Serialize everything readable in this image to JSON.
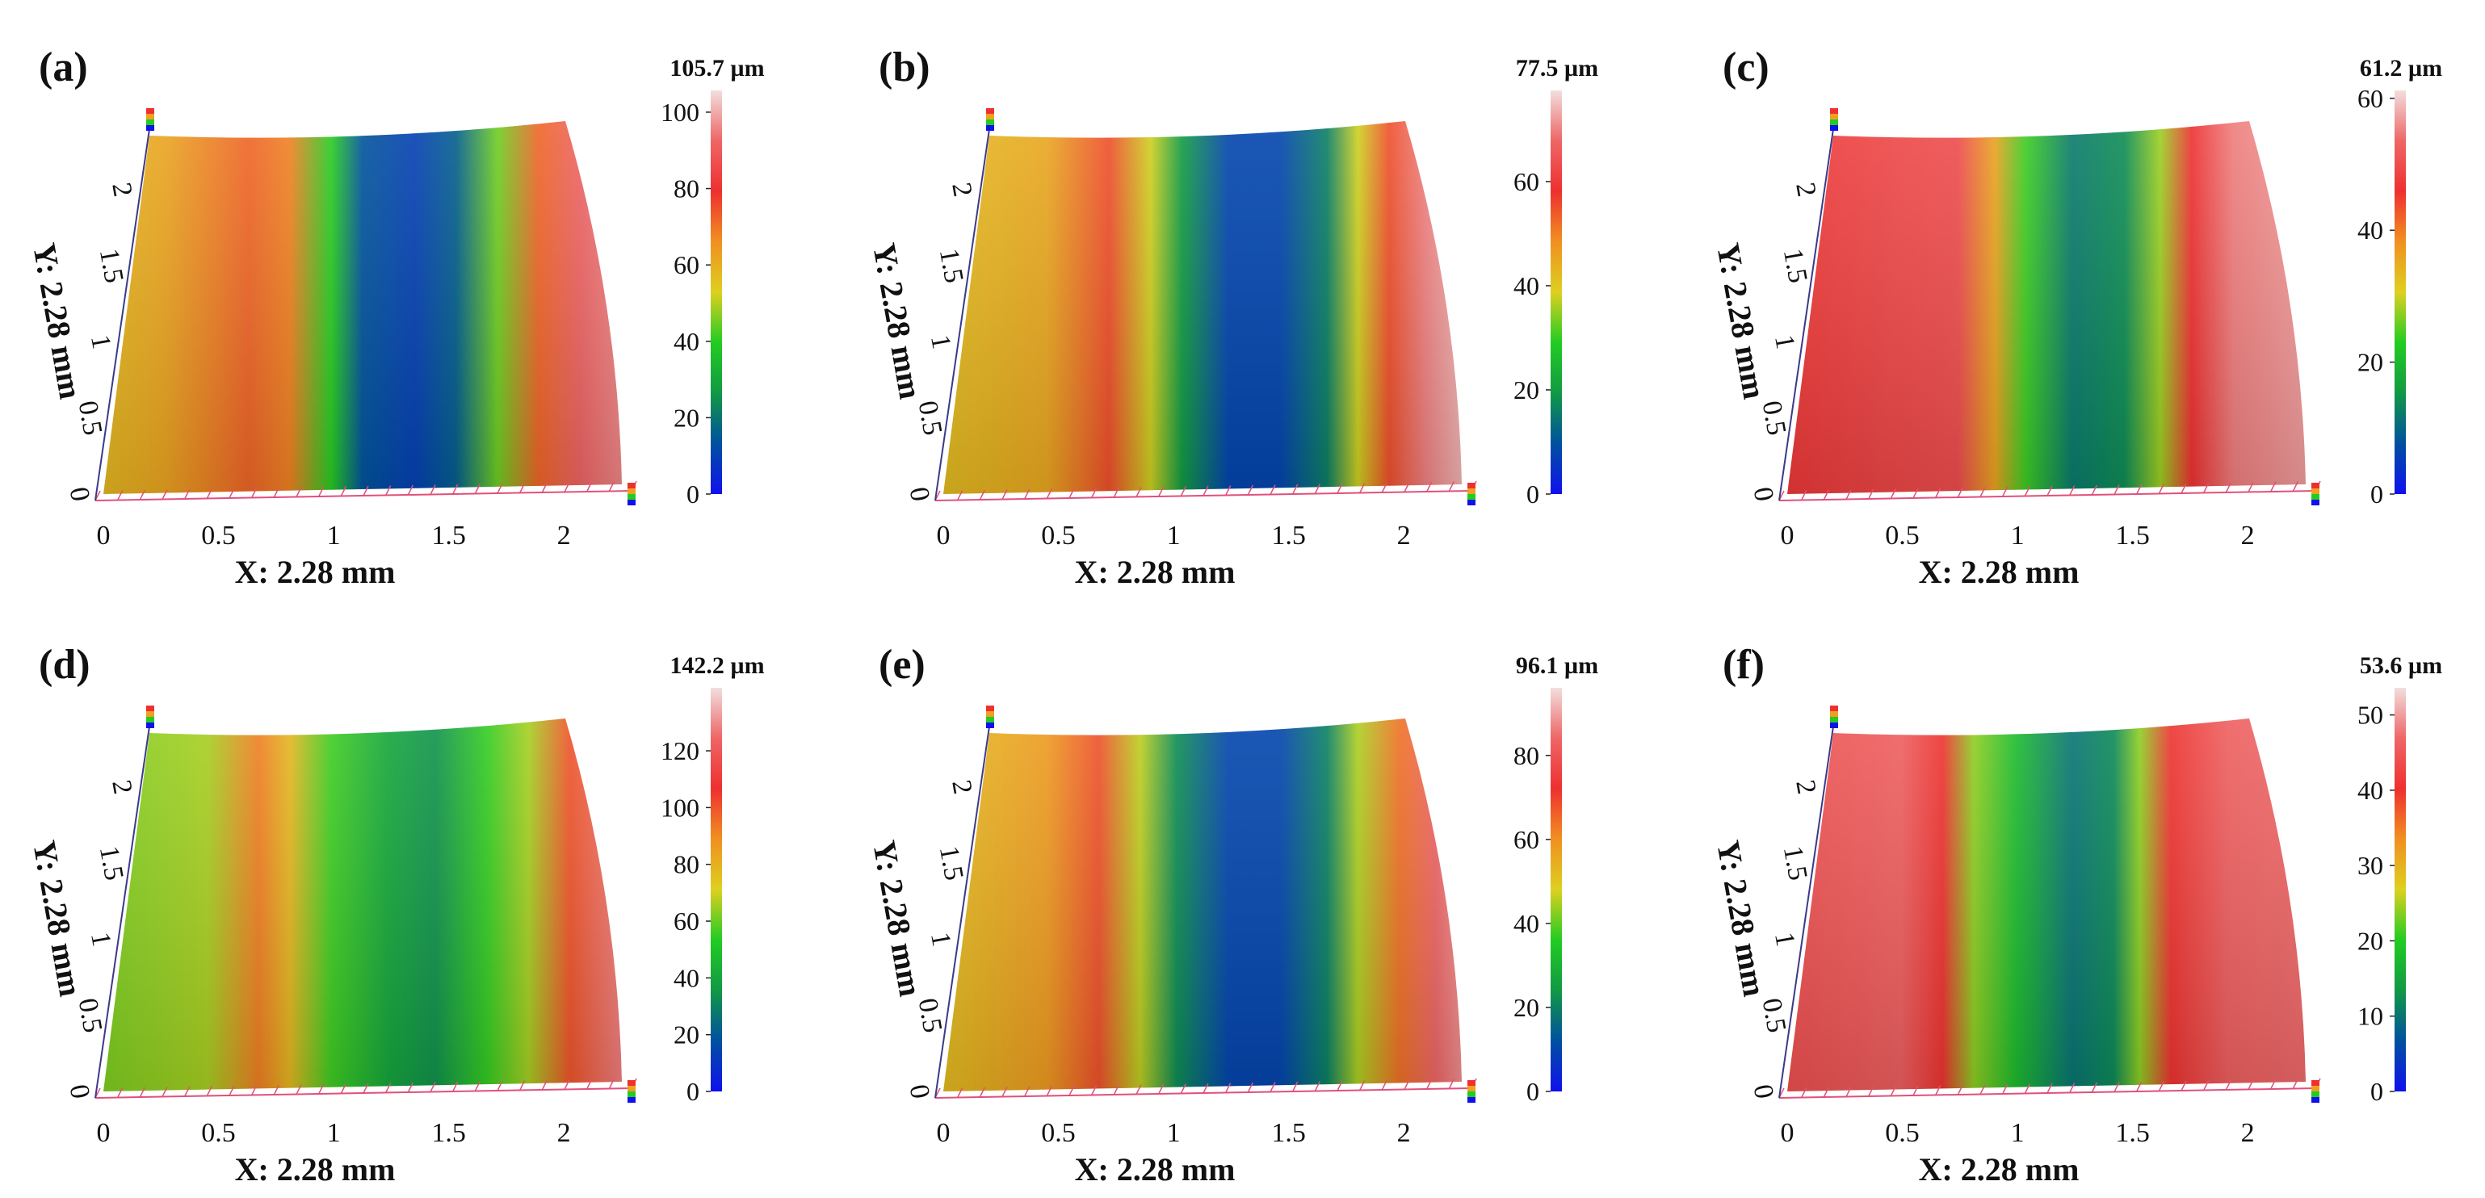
{
  "colormap": [
    "#1010ee",
    "#0050a0",
    "#119944",
    "#22cc22",
    "#ddd020",
    "#f09020",
    "#ee3030",
    "#ee6666",
    "#f2dede"
  ],
  "axis_color": "#e0507a",
  "panels": [
    {
      "id": "a",
      "label": "(a)",
      "x_title": "X: 2.28 mm",
      "y_title": "Y: 2.28 mm",
      "x_ticks": [
        "0",
        "0.5",
        "1",
        "1.5",
        "2"
      ],
      "y_ticks": [
        "0",
        "0.5",
        "1",
        "1.5",
        "2"
      ],
      "cb_max_label": "105.7 µm",
      "cb_max": 105.7,
      "cb_ticks": [
        "0",
        "20",
        "40",
        "60",
        "80",
        "100"
      ],
      "cb_tick_values": [
        0,
        20,
        40,
        60,
        80,
        100
      ],
      "profile": [
        [
          0.0,
          58
        ],
        [
          0.12,
          62
        ],
        [
          0.28,
          72
        ],
        [
          0.36,
          68
        ],
        [
          0.44,
          40
        ],
        [
          0.5,
          14
        ],
        [
          0.6,
          10
        ],
        [
          0.68,
          16
        ],
        [
          0.76,
          45
        ],
        [
          0.84,
          72
        ],
        [
          0.92,
          92
        ],
        [
          1.0,
          96
        ]
      ]
    },
    {
      "id": "b",
      "label": "(b)",
      "x_title": "X: 2.28 mm",
      "y_title": "Y: 2.28 mm",
      "x_ticks": [
        "0",
        "0.5",
        "1",
        "1.5",
        "2"
      ],
      "y_ticks": [
        "0",
        "0.5",
        "1",
        "1.5",
        "2"
      ],
      "cb_max_label": "77.5 µm",
      "cb_max": 77.5,
      "cb_ticks": [
        "0",
        "20",
        "40",
        "60"
      ],
      "cb_tick_values": [
        0,
        20,
        40,
        60
      ],
      "profile": [
        [
          0.0,
          42
        ],
        [
          0.2,
          45
        ],
        [
          0.32,
          55
        ],
        [
          0.4,
          38
        ],
        [
          0.46,
          20
        ],
        [
          0.55,
          8
        ],
        [
          0.65,
          8
        ],
        [
          0.74,
          16
        ],
        [
          0.8,
          38
        ],
        [
          0.86,
          55
        ],
        [
          0.93,
          70
        ],
        [
          1.0,
          74
        ]
      ]
    },
    {
      "id": "c",
      "label": "(c)",
      "x_title": "X: 2.28 mm",
      "y_title": "Y: 2.28 mm",
      "x_ticks": [
        "0",
        "0.5",
        "1",
        "1.5",
        "2"
      ],
      "y_ticks": [
        "0",
        "0.5",
        "1",
        "1.5",
        "2"
      ],
      "cb_max_label": "61.2 µm",
      "cb_max": 61.2,
      "cb_ticks": [
        "0",
        "20",
        "40",
        "60"
      ],
      "cb_tick_values": [
        0,
        20,
        40,
        60
      ],
      "profile": [
        [
          0.0,
          47
        ],
        [
          0.2,
          49
        ],
        [
          0.33,
          50
        ],
        [
          0.4,
          36
        ],
        [
          0.46,
          24
        ],
        [
          0.55,
          12
        ],
        [
          0.65,
          14
        ],
        [
          0.72,
          28
        ],
        [
          0.78,
          46
        ],
        [
          0.86,
          55
        ],
        [
          1.0,
          57
        ]
      ]
    },
    {
      "id": "d",
      "label": "(d)",
      "x_title": "X: 2.28 mm",
      "y_title": "Y: 2.28 mm",
      "x_ticks": [
        "0",
        "0.5",
        "1",
        "1.5",
        "2"
      ],
      "y_ticks": [
        "0",
        "0.5",
        "1",
        "1.5",
        "2"
      ],
      "cb_max_label": "142.2 µm",
      "cb_max": 142.2,
      "cb_ticks": [
        "0",
        "20",
        "40",
        "60",
        "80",
        "100",
        "120"
      ],
      "cb_tick_values": [
        0,
        20,
        40,
        60,
        80,
        100,
        120
      ],
      "profile": [
        [
          0.0,
          62
        ],
        [
          0.2,
          66
        ],
        [
          0.3,
          92
        ],
        [
          0.36,
          78
        ],
        [
          0.44,
          56
        ],
        [
          0.55,
          40
        ],
        [
          0.64,
          34
        ],
        [
          0.74,
          55
        ],
        [
          0.82,
          66
        ],
        [
          0.9,
          100
        ],
        [
          1.0,
          128
        ]
      ]
    },
    {
      "id": "e",
      "label": "(e)",
      "x_title": "X: 2.28 mm",
      "y_title": "Y: 2.28 mm",
      "x_ticks": [
        "0",
        "0.5",
        "1",
        "1.5",
        "2"
      ],
      "y_ticks": [
        "0",
        "0.5",
        "1",
        "1.5",
        "2"
      ],
      "cb_max_label": "96.1 µm",
      "cb_max": 96.1,
      "cb_ticks": [
        "0",
        "20",
        "40",
        "60",
        "80"
      ],
      "cb_tick_values": [
        0,
        20,
        40,
        60,
        80
      ],
      "profile": [
        [
          0.0,
          52
        ],
        [
          0.2,
          58
        ],
        [
          0.3,
          68
        ],
        [
          0.38,
          46
        ],
        [
          0.45,
          22
        ],
        [
          0.55,
          10
        ],
        [
          0.65,
          10
        ],
        [
          0.74,
          20
        ],
        [
          0.8,
          45
        ],
        [
          0.88,
          64
        ],
        [
          0.95,
          84
        ],
        [
          1.0,
          88
        ]
      ]
    },
    {
      "id": "f",
      "label": "(f)",
      "x_title": "X: 2.28 mm",
      "y_title": "Y: 2.28 mm",
      "x_ticks": [
        "0",
        "0.5",
        "1",
        "1.5",
        "2"
      ],
      "y_ticks": [
        "0",
        "0.5",
        "1",
        "1.5",
        "2"
      ],
      "cb_max_label": "53.6 µm",
      "cb_max": 53.6,
      "cb_ticks": [
        "0",
        "10",
        "20",
        "30",
        "40",
        "50"
      ],
      "cb_tick_values": [
        0,
        10,
        20,
        30,
        40,
        50
      ],
      "profile": [
        [
          0.0,
          44
        ],
        [
          0.22,
          46
        ],
        [
          0.3,
          40
        ],
        [
          0.36,
          24
        ],
        [
          0.44,
          18
        ],
        [
          0.55,
          10
        ],
        [
          0.63,
          12
        ],
        [
          0.68,
          24
        ],
        [
          0.74,
          40
        ],
        [
          0.85,
          46
        ],
        [
          1.0,
          47
        ]
      ]
    }
  ]
}
